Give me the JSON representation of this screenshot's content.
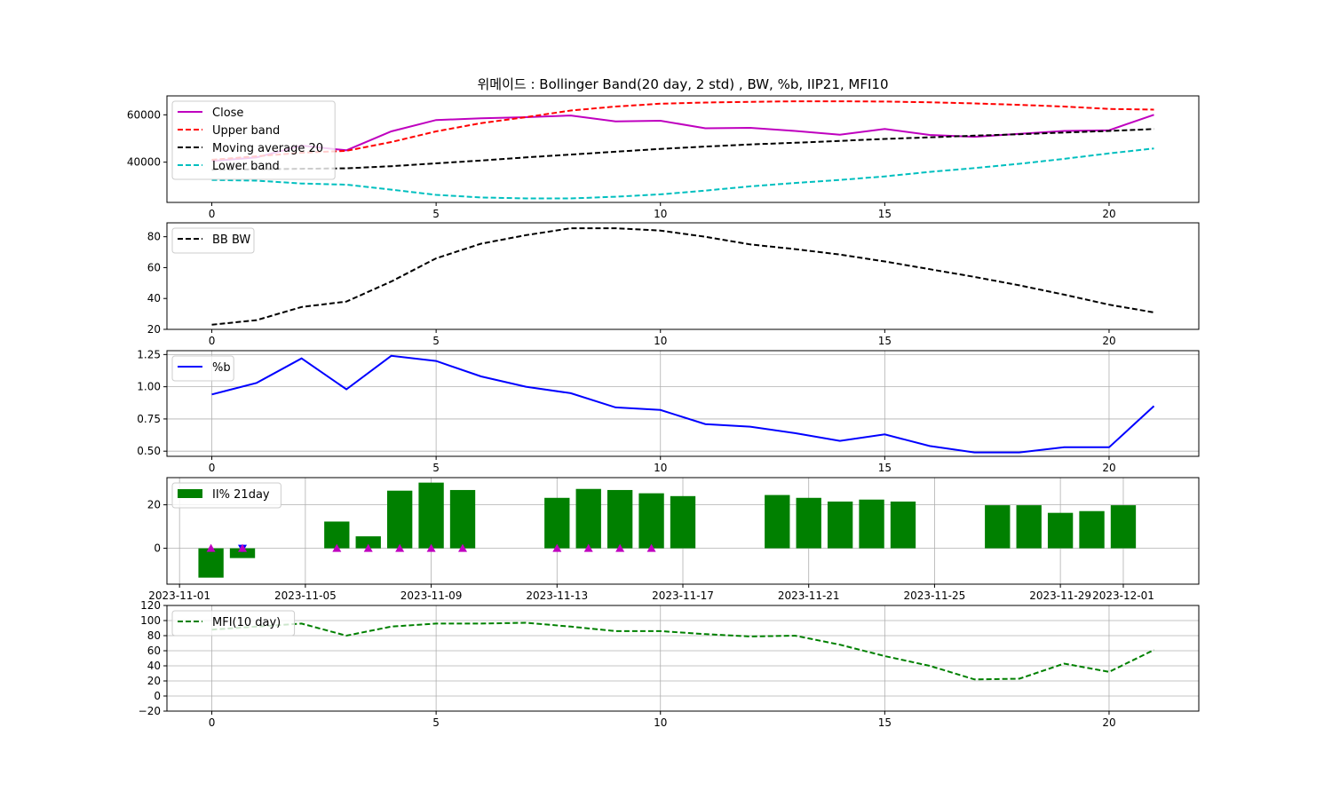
{
  "title": "위메이드 : Bollinger Band(20 day, 2 std) , BW, %b, IIP21, MFI10",
  "chart_data": [
    {
      "type": "line",
      "xlim": [
        -1,
        22
      ],
      "ylim": [
        23000,
        68000
      ],
      "x_ticks": [
        0,
        5,
        10,
        15,
        20
      ],
      "y_ticks": [
        40000,
        60000
      ],
      "legend": "top-left",
      "grid": false,
      "series": [
        {
          "name": "Close",
          "color": "#bf00bf",
          "dash": false,
          "values": [
            40500,
            42000,
            47000,
            45000,
            53000,
            57800,
            58500,
            59000,
            59700,
            57200,
            57500,
            54300,
            54500,
            53200,
            51600,
            54000,
            51500,
            50700,
            52000,
            53200,
            53500,
            60000
          ]
        },
        {
          "name": "Upper band",
          "color": "#ff0000",
          "dash": true,
          "values": [
            41000,
            42500,
            44000,
            44800,
            48500,
            53000,
            56500,
            59000,
            61800,
            63500,
            64700,
            65200,
            65500,
            65700,
            65700,
            65600,
            65300,
            64800,
            64200,
            63500,
            62500,
            62200
          ]
        },
        {
          "name": "Moving average 20",
          "color": "#000000",
          "dash": true,
          "values": [
            36800,
            37000,
            37200,
            37400,
            38300,
            39500,
            40700,
            42000,
            43200,
            44400,
            45600,
            46600,
            47500,
            48200,
            49000,
            49800,
            50500,
            51200,
            51800,
            52500,
            53200,
            54000
          ]
        },
        {
          "name": "Lower band",
          "color": "#00bfbf",
          "dash": true,
          "values": [
            32500,
            32200,
            31000,
            30500,
            28400,
            26200,
            25100,
            24700,
            24700,
            25400,
            26400,
            28000,
            29800,
            31200,
            32500,
            34000,
            35900,
            37500,
            39300,
            41400,
            43700,
            45800
          ]
        }
      ]
    },
    {
      "type": "line",
      "xlim": [
        -1,
        22
      ],
      "ylim": [
        20,
        89
      ],
      "x_ticks": [
        0,
        5,
        10,
        15,
        20
      ],
      "y_ticks": [
        20,
        40,
        60,
        80
      ],
      "legend": "top-left",
      "grid": false,
      "series": [
        {
          "name": "BB BW",
          "color": "#000000",
          "dash": true,
          "values": [
            23,
            26,
            34.5,
            38,
            51,
            66,
            75.5,
            81,
            85.5,
            85.5,
            84,
            80,
            75,
            72,
            68.5,
            64,
            59,
            54,
            48.5,
            42.5,
            36,
            31
          ]
        }
      ]
    },
    {
      "type": "line",
      "xlim": [
        -1,
        22
      ],
      "ylim": [
        0.46,
        1.28
      ],
      "x_ticks": [
        0,
        5,
        10,
        15,
        20
      ],
      "y_ticks": [
        0.5,
        0.75,
        1.0,
        1.25
      ],
      "y_tick_labels": [
        "0.50",
        "0.75",
        "1.00",
        "1.25"
      ],
      "legend": "top-left",
      "grid": true,
      "series": [
        {
          "name": "%b",
          "color": "#0000ff",
          "dash": false,
          "values": [
            0.94,
            1.03,
            1.22,
            0.98,
            1.24,
            1.2,
            1.08,
            1.0,
            0.95,
            0.84,
            0.82,
            0.71,
            0.69,
            0.64,
            0.58,
            0.63,
            0.54,
            0.49,
            0.49,
            0.53,
            0.53,
            0.85
          ]
        }
      ]
    },
    {
      "type": "bar",
      "xlim": [
        -0.4,
        32.4
      ],
      "ylim": [
        -16.5,
        32.5
      ],
      "x_tick_positions": [
        0,
        4,
        8,
        12,
        16,
        20,
        24,
        28,
        30
      ],
      "x_tick_labels": [
        "2023-11-01",
        "2023-11-05",
        "2023-11-09",
        "2023-11-13",
        "2023-11-17",
        "2023-11-21",
        "2023-11-25",
        "2023-11-29",
        "2023-12-01"
      ],
      "y_ticks": [
        0,
        20
      ],
      "legend": "top-left",
      "grid": true,
      "bar_color": "#008000",
      "series": [
        {
          "name": "II% 21day",
          "x": [
            1,
            2,
            5,
            6,
            7,
            8,
            9,
            12,
            13,
            14,
            15,
            16,
            19,
            20,
            21,
            22,
            23,
            26,
            27,
            28,
            29,
            30
          ],
          "values": [
            -13.5,
            -4.5,
            12.3,
            5.5,
            26.5,
            30.2,
            26.8,
            23.2,
            27.3,
            26.8,
            25.3,
            24.0,
            24.5,
            23.2,
            21.5,
            22.4,
            21.5,
            19.8,
            19.8,
            16.3,
            17.1,
            19.8
          ]
        }
      ],
      "markers": [
        {
          "x": 1.0,
          "y": 0,
          "shape": "triangle-up",
          "color": "#bf00bf"
        },
        {
          "x": 2.0,
          "y": 0,
          "shape": "triangle-down",
          "color": "#0000ff"
        },
        {
          "x": 2.0,
          "y": 0,
          "shape": "triangle-up",
          "color": "#bf00bf"
        },
        {
          "x": 5.0,
          "y": 0,
          "shape": "triangle-up",
          "color": "#bf00bf"
        },
        {
          "x": 6.0,
          "y": 0,
          "shape": "triangle-up",
          "color": "#bf00bf"
        },
        {
          "x": 7.0,
          "y": 0,
          "shape": "triangle-up",
          "color": "#bf00bf"
        },
        {
          "x": 8.0,
          "y": 0,
          "shape": "triangle-up",
          "color": "#bf00bf"
        },
        {
          "x": 9.0,
          "y": 0,
          "shape": "triangle-up",
          "color": "#bf00bf"
        },
        {
          "x": 12.0,
          "y": 0,
          "shape": "triangle-up",
          "color": "#bf00bf"
        },
        {
          "x": 13.0,
          "y": 0,
          "shape": "triangle-up",
          "color": "#bf00bf"
        },
        {
          "x": 14.0,
          "y": 0,
          "shape": "triangle-up",
          "color": "#bf00bf"
        },
        {
          "x": 15.0,
          "y": 0,
          "shape": "triangle-up",
          "color": "#bf00bf"
        }
      ]
    },
    {
      "type": "line",
      "xlim": [
        -1,
        22
      ],
      "ylim": [
        -20,
        120
      ],
      "x_ticks": [
        0,
        5,
        10,
        15,
        20
      ],
      "y_ticks": [
        -20,
        0,
        20,
        40,
        60,
        80,
        100,
        120
      ],
      "y_tick_labels": [
        "−20",
        "0",
        "20",
        "40",
        "60",
        "80",
        "100",
        "120"
      ],
      "legend": "top-left",
      "grid": true,
      "series": [
        {
          "name": "MFI(10 day)",
          "color": "#008000",
          "dash": true,
          "values": [
            88,
            92,
            96,
            80,
            92,
            96,
            96,
            97,
            92,
            86,
            86,
            82,
            79,
            80,
            68,
            53,
            40,
            22,
            23,
            43,
            32,
            61
          ]
        }
      ]
    }
  ]
}
